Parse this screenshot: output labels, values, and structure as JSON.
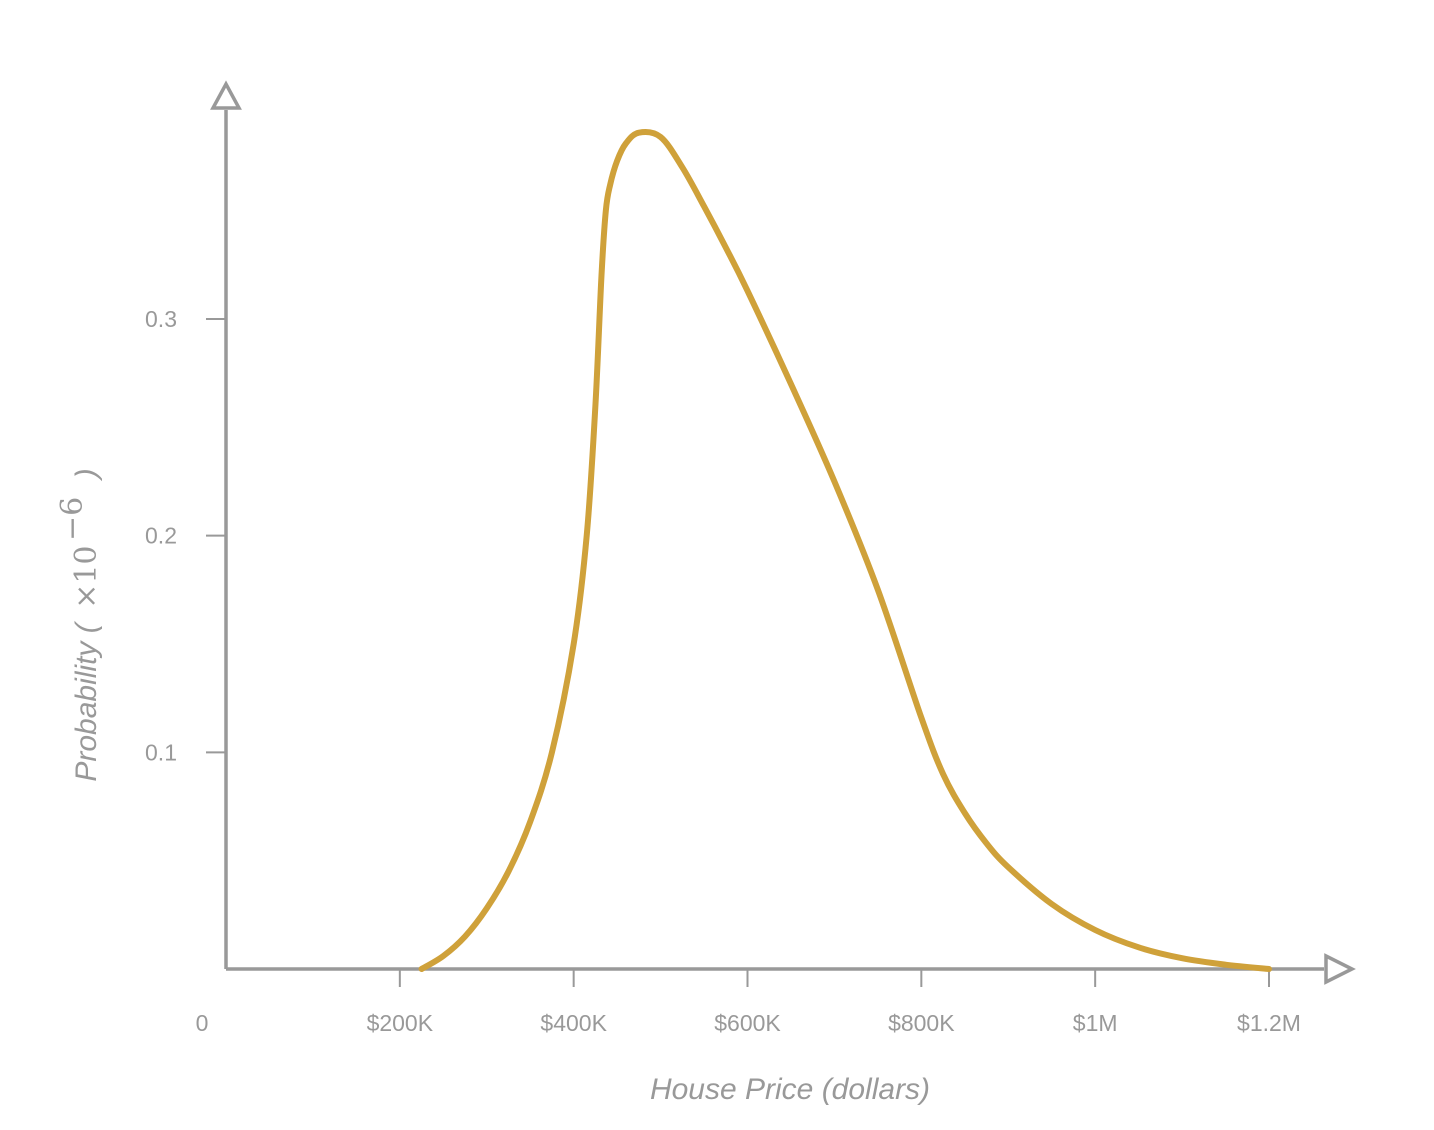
{
  "chart_data": {
    "type": "line",
    "title": "",
    "xlabel": "House Price (dollars)",
    "ylabel": {
      "text": "Probability (",
      "multiplier": "×10",
      "exponent": "−6",
      "close": ")"
    },
    "xlim": [
      0,
      1200000
    ],
    "ylim": [
      0,
      0.39
    ],
    "grid": false,
    "legend": "none",
    "x_ticks": [
      {
        "value": 0,
        "label": "0"
      },
      {
        "value": 200000,
        "label": "$200K"
      },
      {
        "value": 400000,
        "label": "$400K"
      },
      {
        "value": 600000,
        "label": "$600K"
      },
      {
        "value": 800000,
        "label": "$800K"
      },
      {
        "value": 1000000,
        "label": "$1M"
      },
      {
        "value": 1200000,
        "label": "$1.2M"
      }
    ],
    "y_ticks": [
      {
        "value": 0.1,
        "label": "0.1"
      },
      {
        "value": 0.2,
        "label": "0.2"
      },
      {
        "value": 0.3,
        "label": "0.3"
      }
    ],
    "series": [
      {
        "color": "#CFA13A",
        "x": [
          225000,
          250000,
          275000,
          300000,
          325000,
          350000,
          375000,
          400000,
          415000,
          425000,
          432000,
          437000,
          442000,
          450000,
          460000,
          475000,
          500000,
          525000,
          550000,
          575000,
          600000,
          650000,
          700000,
          750000,
          800000,
          825000,
          850000,
          875000,
          900000,
          950000,
          1000000,
          1050000,
          1100000,
          1150000,
          1200000
        ],
        "y": [
          0.0,
          0.006,
          0.015,
          0.028,
          0.045,
          0.068,
          0.1,
          0.15,
          0.2,
          0.26,
          0.32,
          0.35,
          0.362,
          0.373,
          0.381,
          0.386,
          0.384,
          0.37,
          0.352,
          0.333,
          0.313,
          0.27,
          0.225,
          0.175,
          0.116,
          0.09,
          0.072,
          0.058,
          0.047,
          0.03,
          0.018,
          0.01,
          0.005,
          0.002,
          0.0
        ]
      }
    ]
  }
}
